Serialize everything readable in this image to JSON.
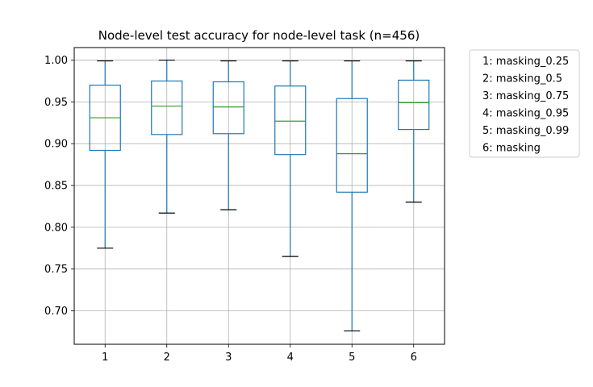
{
  "chart_data": {
    "type": "box",
    "title": "Node-level test accuracy for node-level task (n=456)",
    "xlabel": "",
    "ylabel": "",
    "categories": [
      "1",
      "2",
      "3",
      "4",
      "5",
      "6"
    ],
    "ylim": [
      0.66,
      1.015
    ],
    "yticks": [
      0.7,
      0.75,
      0.8,
      0.85,
      0.9,
      0.95,
      1.0
    ],
    "ytick_labels": [
      "0.70",
      "0.75",
      "0.80",
      "0.85",
      "0.90",
      "0.95",
      "1.00"
    ],
    "grid": true,
    "legend_position": "outside-right",
    "legend": [
      "1: masking_0.25",
      "2: masking_0.5",
      "3: masking_0.75",
      "4: masking_0.95",
      "5: masking_0.99",
      "6: masking"
    ],
    "boxes": [
      {
        "label": "1",
        "whisker_low": 0.775,
        "q1": 0.892,
        "median": 0.931,
        "q3": 0.97,
        "whisker_high": 0.999
      },
      {
        "label": "2",
        "whisker_low": 0.817,
        "q1": 0.911,
        "median": 0.945,
        "q3": 0.975,
        "whisker_high": 1.0
      },
      {
        "label": "3",
        "whisker_low": 0.821,
        "q1": 0.912,
        "median": 0.944,
        "q3": 0.974,
        "whisker_high": 0.999
      },
      {
        "label": "4",
        "whisker_low": 0.765,
        "q1": 0.887,
        "median": 0.927,
        "q3": 0.969,
        "whisker_high": 0.999
      },
      {
        "label": "5",
        "whisker_low": 0.676,
        "q1": 0.842,
        "median": 0.888,
        "q3": 0.954,
        "whisker_high": 0.999
      },
      {
        "label": "6",
        "whisker_low": 0.83,
        "q1": 0.917,
        "median": 0.949,
        "q3": 0.976,
        "whisker_high": 0.999
      }
    ],
    "colors": {
      "box": "#1f77b4",
      "median": "#2ca02c",
      "cap": "#000000",
      "grid": "#b0b0b0",
      "axes": "#000000",
      "legend_border": "#cccccc"
    }
  }
}
